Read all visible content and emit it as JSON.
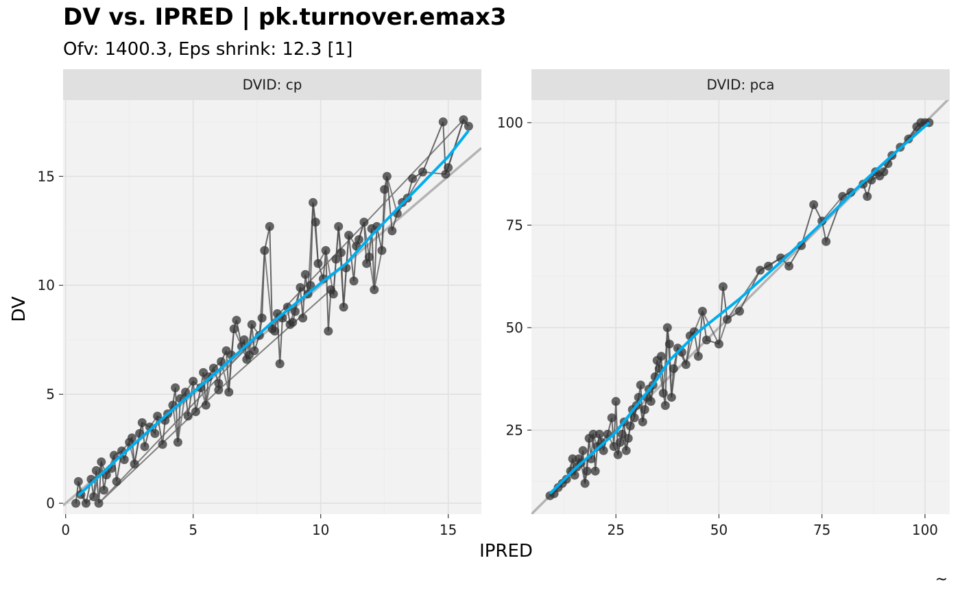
{
  "title": "DV vs. IPRED | pk.turnover.emax3",
  "subtitle": "Ofv: 1400.3, Eps shrink: 12.3 [1]",
  "caption": "~",
  "colors": {
    "panel_bg": "#f2f2f2",
    "strip_bg": "#e0e0e0",
    "grid": "#e5e5e5",
    "points": "#333333",
    "lines": "#4d4d4d",
    "identity": "#b3b3b3",
    "smooth": "#00aeef"
  },
  "chart_data": {
    "type": "scatter",
    "xlabel": "IPRED",
    "ylabel": "DV",
    "facets": [
      {
        "strip": "DVID: cp",
        "xlim": [
          -0.1,
          16.3
        ],
        "ylim": [
          -0.5,
          18.5
        ],
        "xticks": [
          0,
          5,
          10,
          15
        ],
        "yticks": [
          0,
          5,
          10,
          15
        ],
        "identity_line": true,
        "points": [
          [
            0.5,
            1.0
          ],
          [
            0.6,
            0.4
          ],
          [
            0.8,
            0.0
          ],
          [
            1.0,
            1.1
          ],
          [
            1.1,
            0.3
          ],
          [
            1.2,
            1.5
          ],
          [
            1.4,
            1.9
          ],
          [
            1.5,
            0.6
          ],
          [
            1.6,
            1.3
          ],
          [
            1.8,
            1.6
          ],
          [
            1.9,
            2.2
          ],
          [
            2.0,
            1.0
          ],
          [
            2.2,
            2.4
          ],
          [
            2.3,
            2.0
          ],
          [
            2.5,
            2.8
          ],
          [
            2.6,
            3.0
          ],
          [
            2.7,
            1.8
          ],
          [
            2.9,
            3.2
          ],
          [
            3.0,
            3.7
          ],
          [
            3.1,
            2.6
          ],
          [
            3.3,
            3.5
          ],
          [
            3.5,
            3.2
          ],
          [
            3.6,
            4.0
          ],
          [
            3.8,
            2.7
          ],
          [
            3.9,
            3.8
          ],
          [
            4.0,
            4.1
          ],
          [
            4.2,
            4.5
          ],
          [
            4.3,
            5.3
          ],
          [
            4.4,
            2.8
          ],
          [
            4.5,
            4.8
          ],
          [
            4.7,
            5.1
          ],
          [
            4.8,
            4.0
          ],
          [
            5.0,
            5.6
          ],
          [
            5.1,
            4.2
          ],
          [
            5.3,
            5.3
          ],
          [
            5.4,
            6.0
          ],
          [
            5.5,
            4.5
          ],
          [
            5.6,
            5.8
          ],
          [
            5.8,
            6.2
          ],
          [
            6.0,
            5.5
          ],
          [
            6.1,
            6.5
          ],
          [
            6.3,
            7.0
          ],
          [
            6.4,
            5.1
          ],
          [
            6.5,
            6.8
          ],
          [
            6.6,
            8.0
          ],
          [
            6.7,
            8.4
          ],
          [
            6.9,
            7.2
          ],
          [
            7.0,
            7.5
          ],
          [
            7.1,
            6.6
          ],
          [
            7.2,
            6.8
          ],
          [
            7.3,
            8.2
          ],
          [
            7.4,
            7.0
          ],
          [
            7.6,
            7.7
          ],
          [
            7.7,
            8.5
          ],
          [
            7.8,
            11.6
          ],
          [
            8.0,
            12.7
          ],
          [
            8.1,
            8.0
          ],
          [
            8.2,
            7.9
          ],
          [
            8.3,
            8.7
          ],
          [
            8.4,
            6.4
          ],
          [
            8.5,
            8.5
          ],
          [
            8.7,
            9.0
          ],
          [
            8.8,
            8.2
          ],
          [
            9.0,
            8.8
          ],
          [
            9.2,
            9.9
          ],
          [
            9.3,
            8.5
          ],
          [
            9.5,
            9.6
          ],
          [
            9.6,
            10.0
          ],
          [
            9.7,
            13.8
          ],
          [
            9.8,
            12.9
          ],
          [
            9.9,
            11.0
          ],
          [
            10.1,
            10.3
          ],
          [
            10.2,
            11.6
          ],
          [
            10.3,
            7.9
          ],
          [
            10.5,
            9.6
          ],
          [
            10.6,
            11.2
          ],
          [
            10.7,
            12.7
          ],
          [
            10.8,
            11.5
          ],
          [
            10.9,
            9.0
          ],
          [
            11.0,
            10.8
          ],
          [
            11.1,
            12.3
          ],
          [
            11.3,
            10.2
          ],
          [
            11.4,
            11.8
          ],
          [
            11.5,
            12.1
          ],
          [
            11.7,
            12.9
          ],
          [
            11.8,
            11.0
          ],
          [
            11.9,
            11.3
          ],
          [
            12.0,
            12.6
          ],
          [
            12.1,
            9.8
          ],
          [
            12.2,
            12.7
          ],
          [
            12.4,
            11.6
          ],
          [
            12.5,
            14.4
          ],
          [
            12.6,
            15.0
          ],
          [
            12.8,
            12.5
          ],
          [
            13.0,
            13.3
          ],
          [
            13.2,
            13.8
          ],
          [
            13.4,
            14.0
          ],
          [
            13.6,
            14.9
          ],
          [
            14.0,
            15.2
          ],
          [
            14.8,
            17.5
          ],
          [
            14.9,
            15.1
          ],
          [
            15.0,
            15.4
          ],
          [
            15.6,
            17.6
          ],
          [
            15.8,
            17.3
          ],
          [
            1.3,
            0.0
          ],
          [
            0.4,
            0.0
          ],
          [
            6.0,
            5.2
          ],
          [
            8.9,
            8.3
          ],
          [
            10.4,
            9.8
          ],
          [
            9.4,
            10.5
          ]
        ],
        "identity_range": [
          -0.1,
          16.3
        ],
        "smooth": [
          [
            0.5,
            0.35
          ],
          [
            2,
            2.0
          ],
          [
            4,
            4.1
          ],
          [
            6,
            6.1
          ],
          [
            8,
            8.2
          ],
          [
            10,
            10.1
          ],
          [
            11,
            11.0
          ],
          [
            12,
            12.3
          ],
          [
            13,
            13.5
          ],
          [
            14,
            14.7
          ],
          [
            15,
            15.9
          ],
          [
            15.8,
            17.1
          ]
        ]
      },
      {
        "strip": "DVID: pca",
        "xlim": [
          4.5,
          106
        ],
        "ylim": [
          4.5,
          105.5
        ],
        "xticks": [
          25,
          50,
          75,
          100
        ],
        "yticks": [
          25,
          50,
          75,
          100
        ],
        "identity_line": true,
        "points": [
          [
            9,
            9
          ],
          [
            10,
            9.5
          ],
          [
            11,
            11
          ],
          [
            12,
            12
          ],
          [
            13,
            13
          ],
          [
            14,
            15
          ],
          [
            14.5,
            18
          ],
          [
            15,
            14
          ],
          [
            15.5,
            16
          ],
          [
            16,
            18
          ],
          [
            16.5,
            17
          ],
          [
            17,
            20
          ],
          [
            17.5,
            12
          ],
          [
            18,
            15
          ],
          [
            18.5,
            23
          ],
          [
            19,
            18
          ],
          [
            19.5,
            24
          ],
          [
            20,
            15
          ],
          [
            20.5,
            21
          ],
          [
            21,
            24
          ],
          [
            21.5,
            22
          ],
          [
            22,
            20
          ],
          [
            23,
            24
          ],
          [
            24,
            28
          ],
          [
            24.5,
            21
          ],
          [
            25,
            32
          ],
          [
            25.5,
            19
          ],
          [
            26,
            22
          ],
          [
            26.5,
            24
          ],
          [
            27,
            27
          ],
          [
            27.5,
            20
          ],
          [
            28,
            23
          ],
          [
            28.5,
            26
          ],
          [
            29,
            30
          ],
          [
            29.5,
            28
          ],
          [
            30,
            31
          ],
          [
            30.5,
            33
          ],
          [
            31,
            36
          ],
          [
            31.5,
            27
          ],
          [
            32,
            30
          ],
          [
            32.5,
            33
          ],
          [
            33,
            35
          ],
          [
            33.5,
            32
          ],
          [
            34,
            36
          ],
          [
            34.5,
            38
          ],
          [
            35,
            42
          ],
          [
            35.5,
            40
          ],
          [
            36,
            43
          ],
          [
            36.5,
            34
          ],
          [
            37,
            31
          ],
          [
            37.5,
            50
          ],
          [
            38,
            46
          ],
          [
            38.5,
            33
          ],
          [
            39,
            40
          ],
          [
            40,
            45
          ],
          [
            41,
            44
          ],
          [
            42,
            41
          ],
          [
            43,
            48
          ],
          [
            44,
            49
          ],
          [
            45,
            43
          ],
          [
            46,
            54
          ],
          [
            47,
            47
          ],
          [
            50,
            46
          ],
          [
            51,
            60
          ],
          [
            52,
            52
          ],
          [
            55,
            54
          ],
          [
            60,
            64
          ],
          [
            62,
            65
          ],
          [
            65,
            67
          ],
          [
            67,
            65
          ],
          [
            70,
            70
          ],
          [
            73,
            80
          ],
          [
            75,
            76
          ],
          [
            76,
            71
          ],
          [
            80,
            82
          ],
          [
            82,
            83
          ],
          [
            85,
            85
          ],
          [
            86,
            82
          ],
          [
            87,
            86
          ],
          [
            88,
            88
          ],
          [
            89,
            87
          ],
          [
            90,
            88
          ],
          [
            91,
            90
          ],
          [
            92,
            92
          ],
          [
            98,
            99
          ],
          [
            99,
            100
          ],
          [
            100,
            100
          ],
          [
            101,
            100
          ],
          [
            96,
            96
          ],
          [
            94,
            94
          ]
        ],
        "identity_range": [
          4.5,
          106
        ],
        "smooth": [
          [
            9,
            9.5
          ],
          [
            15,
            15.5
          ],
          [
            20,
            20
          ],
          [
            25,
            24.5
          ],
          [
            30,
            31
          ],
          [
            34,
            36
          ],
          [
            38,
            42
          ],
          [
            45,
            49
          ],
          [
            55,
            57
          ],
          [
            65,
            66
          ],
          [
            75,
            75.5
          ],
          [
            85,
            85.5
          ],
          [
            92,
            92
          ],
          [
            101,
            100
          ]
        ]
      }
    ]
  }
}
